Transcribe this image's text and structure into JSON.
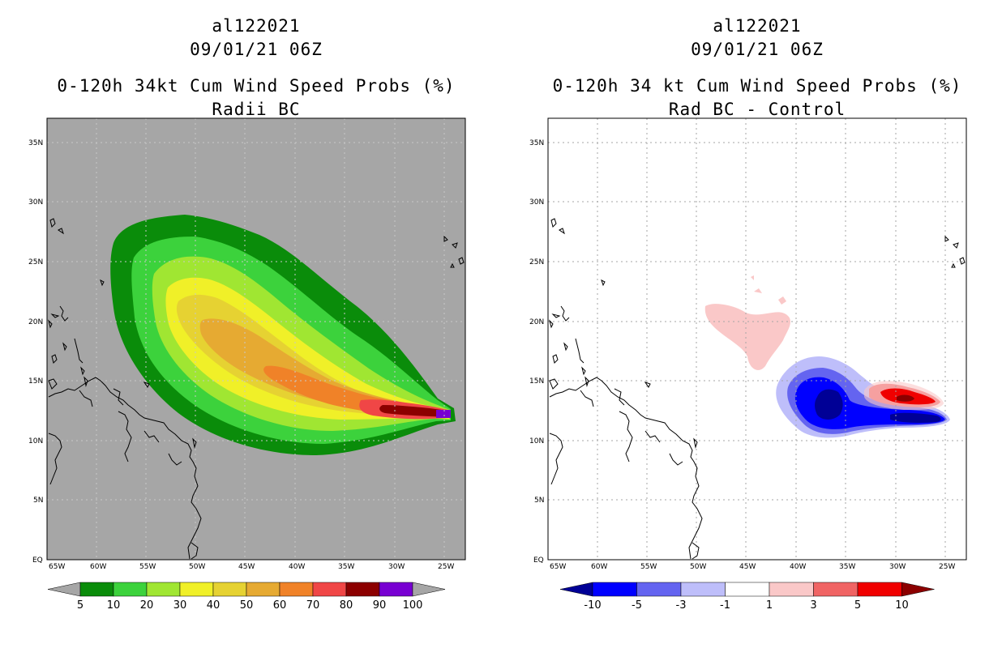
{
  "left_panel": {
    "title_lines": [
      "al122021",
      "09/01/21 06Z",
      "0-120h 34kt Cum Wind Speed Probs (%)",
      "Radii BC"
    ],
    "colorbar": {
      "labels": [
        "5",
        "10",
        "20",
        "30",
        "40",
        "50",
        "60",
        "70",
        "80",
        "90",
        "100"
      ],
      "colors": [
        "#a6a6a6",
        "#0a8c0a",
        "#3cd23c",
        "#a0e632",
        "#f0f028",
        "#e6d232",
        "#e6aa32",
        "#f08228",
        "#f04646",
        "#8c0000",
        "#7800d2",
        "#a6a6a6"
      ]
    }
  },
  "right_panel": {
    "title_lines": [
      "al122021",
      "09/01/21 06Z",
      "0-120h 34 kt Cum Wind Speed Probs (%)",
      "Rad BC - Control"
    ],
    "colorbar": {
      "labels": [
        "-10",
        "-5",
        "-3",
        "-1",
        "1",
        "3",
        "5",
        "10"
      ],
      "colors": [
        "#000096",
        "#0000ff",
        "#6464f0",
        "#bebefa",
        "#ffffff",
        "#fac8c8",
        "#f06464",
        "#f00000",
        "#8c0000"
      ]
    }
  },
  "axes": {
    "lon_labels": [
      "65W",
      "60W",
      "55W",
      "50W",
      "45W",
      "40W",
      "35W",
      "30W",
      "25W"
    ],
    "lat_labels": [
      "EQ",
      "5N",
      "10N",
      "15N",
      "20N",
      "25N",
      "30N",
      "35N"
    ]
  },
  "chart_data": [
    {
      "type": "heatmap",
      "title": "0-120h 34kt Cum Wind Speed Probs (%) Radii BC",
      "storm": "al122021",
      "time": "09/01/21 06Z",
      "units": "%",
      "xlim": [
        -65,
        -23
      ],
      "ylim": [
        0,
        37
      ],
      "contour_levels": [
        5,
        10,
        20,
        30,
        40,
        50,
        60,
        70,
        80,
        90,
        100
      ],
      "max_probability_center": {
        "lon": -24.5,
        "lat": 12.3
      }
    },
    {
      "type": "heatmap",
      "title": "0-120h 34 kt Cum Wind Speed Probs (%) Rad BC - Control",
      "storm": "al122021",
      "time": "09/01/21 06Z",
      "units": "%",
      "xlim": [
        -65,
        -23
      ],
      "ylim": [
        0,
        37
      ],
      "contour_levels": [
        -10,
        -5,
        -3,
        -1,
        1,
        3,
        5,
        10
      ],
      "negative_center": {
        "lon": -37,
        "lat": 13
      },
      "positive_center": {
        "lon": -29.5,
        "lat": 13.5
      }
    }
  ]
}
